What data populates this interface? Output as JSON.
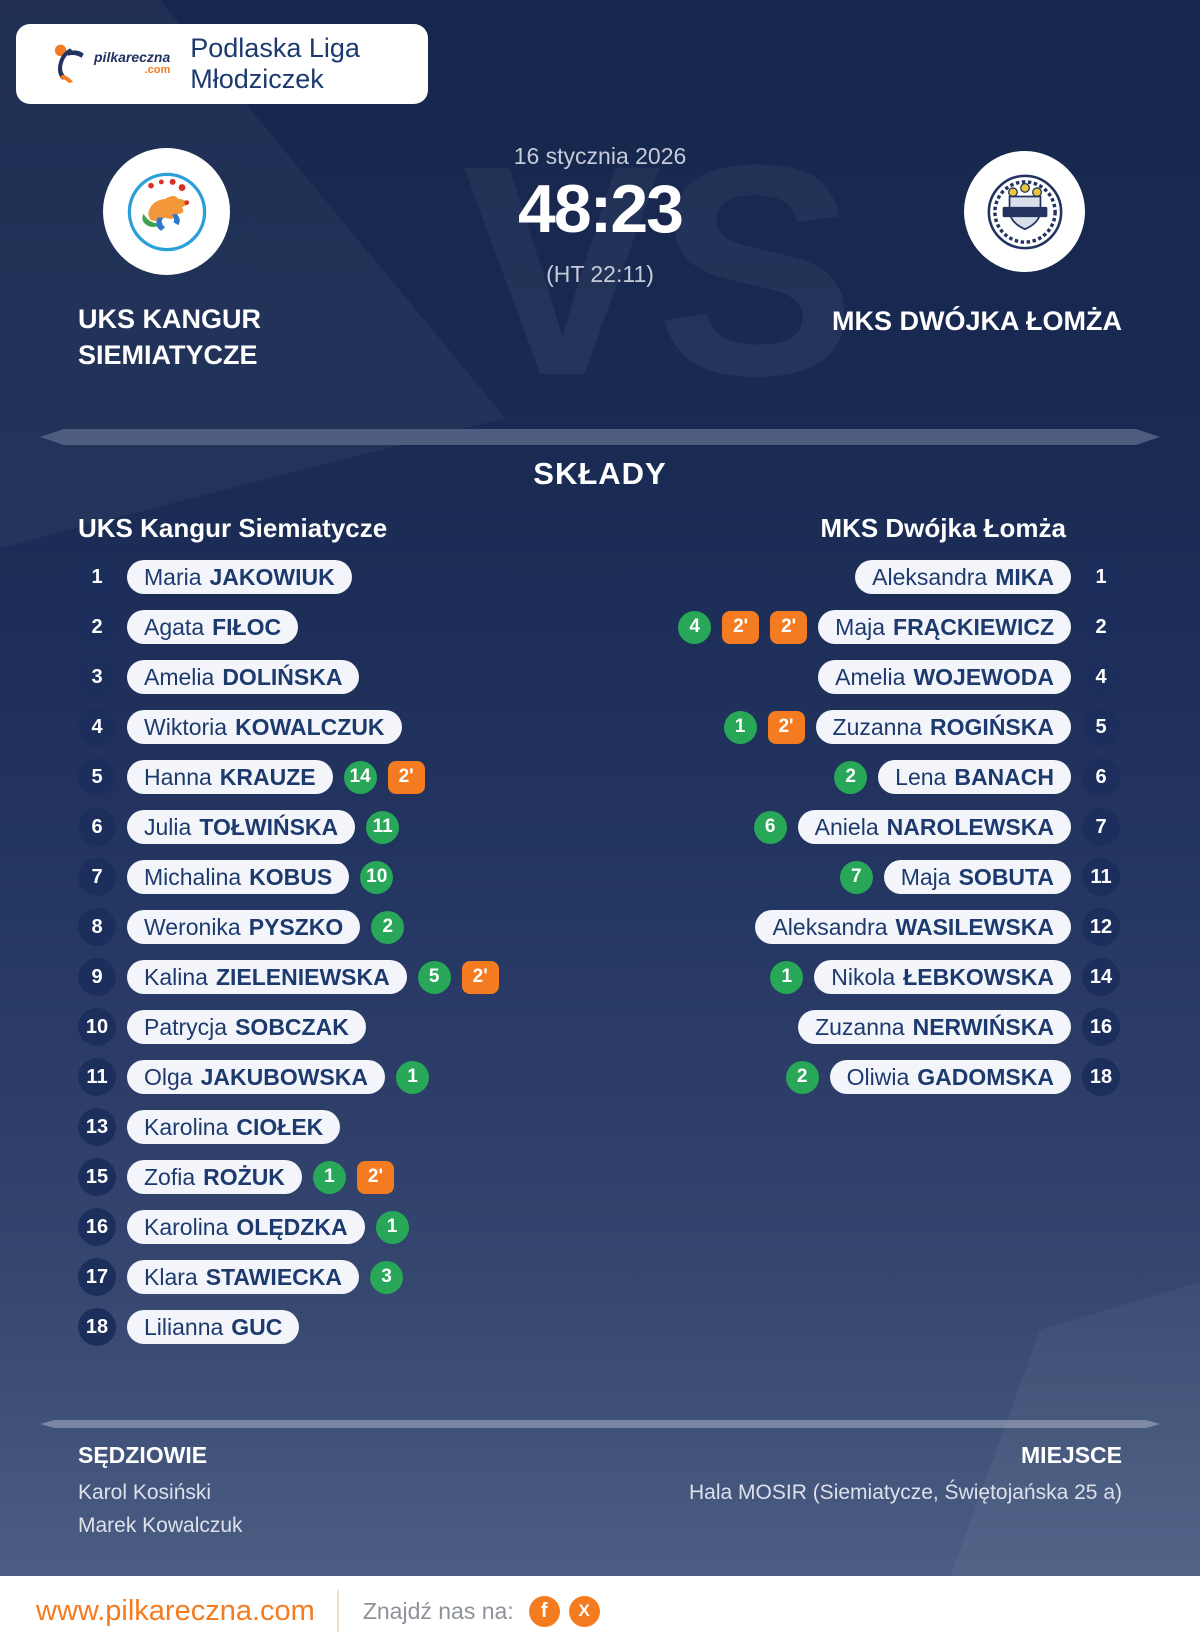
{
  "brand": {
    "logo_text": "pilkareczna",
    "logo_tld": ".com",
    "league_title": "Podlaska Liga Młodziczek"
  },
  "match": {
    "date": "16 stycznia 2026",
    "score": "48:23",
    "halftime": "(HT 22:11)",
    "vs_watermark": "VS",
    "home_team": {
      "name_line1": "UKS KANGUR",
      "name_line2": "SIEMIATYCZE"
    },
    "away_team": {
      "name": "MKS DWÓJKA ŁOMŻA"
    }
  },
  "lineups": {
    "section_title": "SKŁADY",
    "home_header": "UKS Kangur Siemiatycze",
    "away_header": "MKS Dwójka Łomża",
    "penalty_label": "2'",
    "home_players": [
      {
        "number": "1",
        "first_name": "Maria",
        "last_name": "JAKOWIUK",
        "goals": null,
        "two_minutes": 0
      },
      {
        "number": "2",
        "first_name": "Agata",
        "last_name": "FIŁOC",
        "goals": null,
        "two_minutes": 0
      },
      {
        "number": "3",
        "first_name": "Amelia",
        "last_name": "DOLIŃSKA",
        "goals": null,
        "two_minutes": 0
      },
      {
        "number": "4",
        "first_name": "Wiktoria",
        "last_name": "KOWALCZUK",
        "goals": null,
        "two_minutes": 0
      },
      {
        "number": "5",
        "first_name": "Hanna",
        "last_name": "KRAUZE",
        "goals": 14,
        "two_minutes": 1
      },
      {
        "number": "6",
        "first_name": "Julia",
        "last_name": "TOŁWIŃSKA",
        "goals": 11,
        "two_minutes": 0
      },
      {
        "number": "7",
        "first_name": "Michalina",
        "last_name": "KOBUS",
        "goals": 10,
        "two_minutes": 0
      },
      {
        "number": "8",
        "first_name": "Weronika",
        "last_name": "PYSZKO",
        "goals": 2,
        "two_minutes": 0
      },
      {
        "number": "9",
        "first_name": "Kalina",
        "last_name": "ZIELENIEWSKA",
        "goals": 5,
        "two_minutes": 1
      },
      {
        "number": "10",
        "first_name": "Patrycja",
        "last_name": "SOBCZAK",
        "goals": null,
        "two_minutes": 0
      },
      {
        "number": "11",
        "first_name": "Olga",
        "last_name": "JAKUBOWSKA",
        "goals": 1,
        "two_minutes": 0
      },
      {
        "number": "13",
        "first_name": "Karolina",
        "last_name": "CIOŁEK",
        "goals": null,
        "two_minutes": 0
      },
      {
        "number": "15",
        "first_name": "Zofia",
        "last_name": "ROŻUK",
        "goals": 1,
        "two_minutes": 1
      },
      {
        "number": "16",
        "first_name": "Karolina",
        "last_name": "OLĘDZKA",
        "goals": 1,
        "two_minutes": 0
      },
      {
        "number": "17",
        "first_name": "Klara",
        "last_name": "STAWIECKA",
        "goals": 3,
        "two_minutes": 0
      },
      {
        "number": "18",
        "first_name": "Lilianna",
        "last_name": "GUC",
        "goals": null,
        "two_minutes": 0
      }
    ],
    "away_players": [
      {
        "number": "1",
        "first_name": "Aleksandra",
        "last_name": "MIKA",
        "goals": null,
        "two_minutes": 0
      },
      {
        "number": "2",
        "first_name": "Maja",
        "last_name": "FRĄCKIEWICZ",
        "goals": 4,
        "two_minutes": 2
      },
      {
        "number": "4",
        "first_name": "Amelia",
        "last_name": "WOJEWODA",
        "goals": null,
        "two_minutes": 0
      },
      {
        "number": "5",
        "first_name": "Zuzanna",
        "last_name": "ROGIŃSKA",
        "goals": 1,
        "two_minutes": 1
      },
      {
        "number": "6",
        "first_name": "Lena",
        "last_name": "BANACH",
        "goals": 2,
        "two_minutes": 0
      },
      {
        "number": "7",
        "first_name": "Aniela",
        "last_name": "NAROLEWSKA",
        "goals": 6,
        "two_minutes": 0
      },
      {
        "number": "11",
        "first_name": "Maja",
        "last_name": "SOBUTA",
        "goals": 7,
        "two_minutes": 0
      },
      {
        "number": "12",
        "first_name": "Aleksandra",
        "last_name": "WASILEWSKA",
        "goals": null,
        "two_minutes": 0
      },
      {
        "number": "14",
        "first_name": "Nikola",
        "last_name": "ŁEBKOWSKA",
        "goals": 1,
        "two_minutes": 0
      },
      {
        "number": "16",
        "first_name": "Zuzanna",
        "last_name": "NERWIŃSKA",
        "goals": null,
        "two_minutes": 0
      },
      {
        "number": "18",
        "first_name": "Oliwia",
        "last_name": "GADOMSKA",
        "goals": 2,
        "two_minutes": 0
      }
    ]
  },
  "officials": {
    "referees_label": "SĘDZIOWIE",
    "referees": [
      "Karol Kosiński",
      "Marek Kowalczuk"
    ],
    "venue_label": "MIEJSCE",
    "venue": "Hala MOSIR (Siemiatycze, Świętojańska 25 a)"
  },
  "footer": {
    "url": "www.pilkareczna.com",
    "find_us_label": "Znajdź nas na:",
    "social": [
      {
        "name": "facebook",
        "glyph": "f"
      },
      {
        "name": "x",
        "glyph": "X"
      }
    ]
  },
  "colors": {
    "accent_orange": "#f47b20",
    "goal_green": "#27a757",
    "navy_text": "#1c3a6e",
    "pill_bg": "#f3f5fa",
    "number_circle_bg": "#1c2e5b",
    "divider": "#4d5c7f",
    "background_top": "#16264c",
    "background_bottom": "#4e6086"
  }
}
